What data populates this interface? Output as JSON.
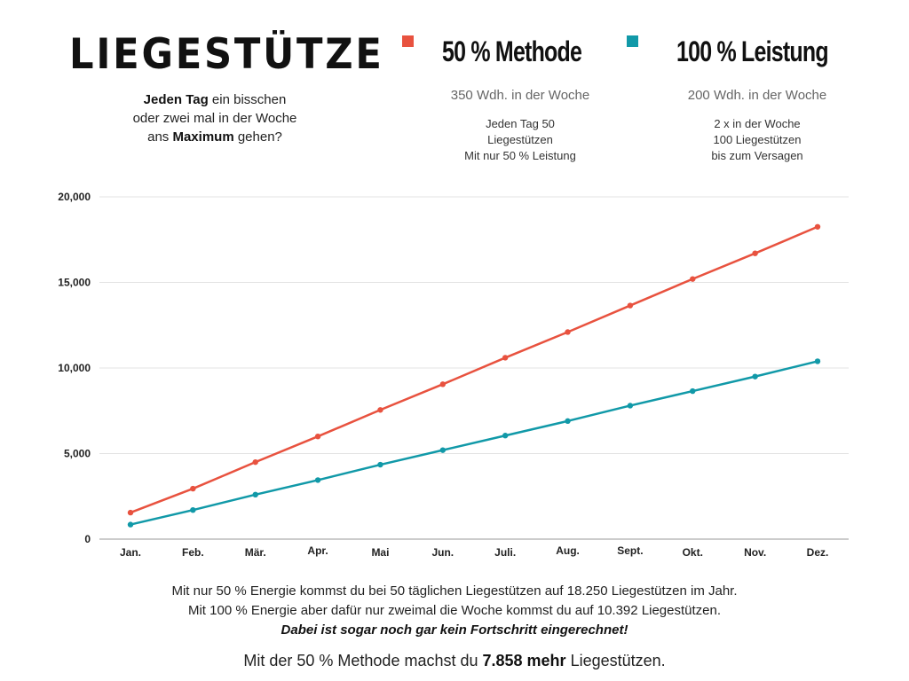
{
  "header": {
    "title": "LIEGESTÜTZE",
    "subtitle_line1_bold": "Jeden Tag",
    "subtitle_line1_rest": " ein bisschen",
    "subtitle_line2": "oder zwei mal in der Woche",
    "subtitle_line3_pre": "ans ",
    "subtitle_line3_bold": "Maximum",
    "subtitle_line3_post": " gehen?"
  },
  "legend": [
    {
      "name": "50 % Methode",
      "color": "#e8523f",
      "sub": "350 Wdh. in der Woche",
      "desc": [
        "Jeden Tag 50",
        "Liegestützen",
        "Mit nur 50 % Leistung"
      ]
    },
    {
      "name": "100 % Leistung",
      "color": "#1199a8",
      "sub": "200 Wdh. in der Woche",
      "desc": [
        "2 x in der Woche",
        "100 Liegestützen",
        "bis zum Versagen"
      ]
    }
  ],
  "chart_data": {
    "type": "line",
    "categories": [
      "Jan.",
      "Feb.",
      "Mär.",
      "Apr.",
      "Mai",
      "Jun.",
      "Juli.",
      "Aug.",
      "Sept.",
      "Okt.",
      "Nov.",
      "Dez."
    ],
    "ylim": [
      0,
      20000
    ],
    "yticks": [
      0,
      5000,
      10000,
      15000,
      20000
    ],
    "ytick_labels": [
      "0",
      "5,000",
      "10,000",
      "15,000",
      "20,000"
    ],
    "grid": true,
    "series": [
      {
        "name": "50 % Methode",
        "color": "#e8523f",
        "values": [
          1550,
          2950,
          4500,
          6000,
          7550,
          9050,
          10600,
          12100,
          13650,
          15200,
          16700,
          18250
        ]
      },
      {
        "name": "100 % Leistung",
        "color": "#1199a8",
        "values": [
          850,
          1700,
          2600,
          3450,
          4350,
          5200,
          6050,
          6900,
          7800,
          8650,
          9500,
          10392
        ]
      }
    ]
  },
  "footer": {
    "line1": "Mit nur 50 % Energie kommst du bei 50 täglichen Liegestützen auf 18.250 Liegestützen im Jahr.",
    "line2": "Mit 100 % Energie aber dafür nur zweimal die Woche kommst du auf 10.392 Liegestützen.",
    "line3": "Dabei ist sogar noch gar kein Fortschritt eingerechnet!",
    "bottom_pre": "Mit der 50 % Methode machst du ",
    "bottom_bold": "7.858 mehr",
    "bottom_post": " Liegestützen."
  }
}
